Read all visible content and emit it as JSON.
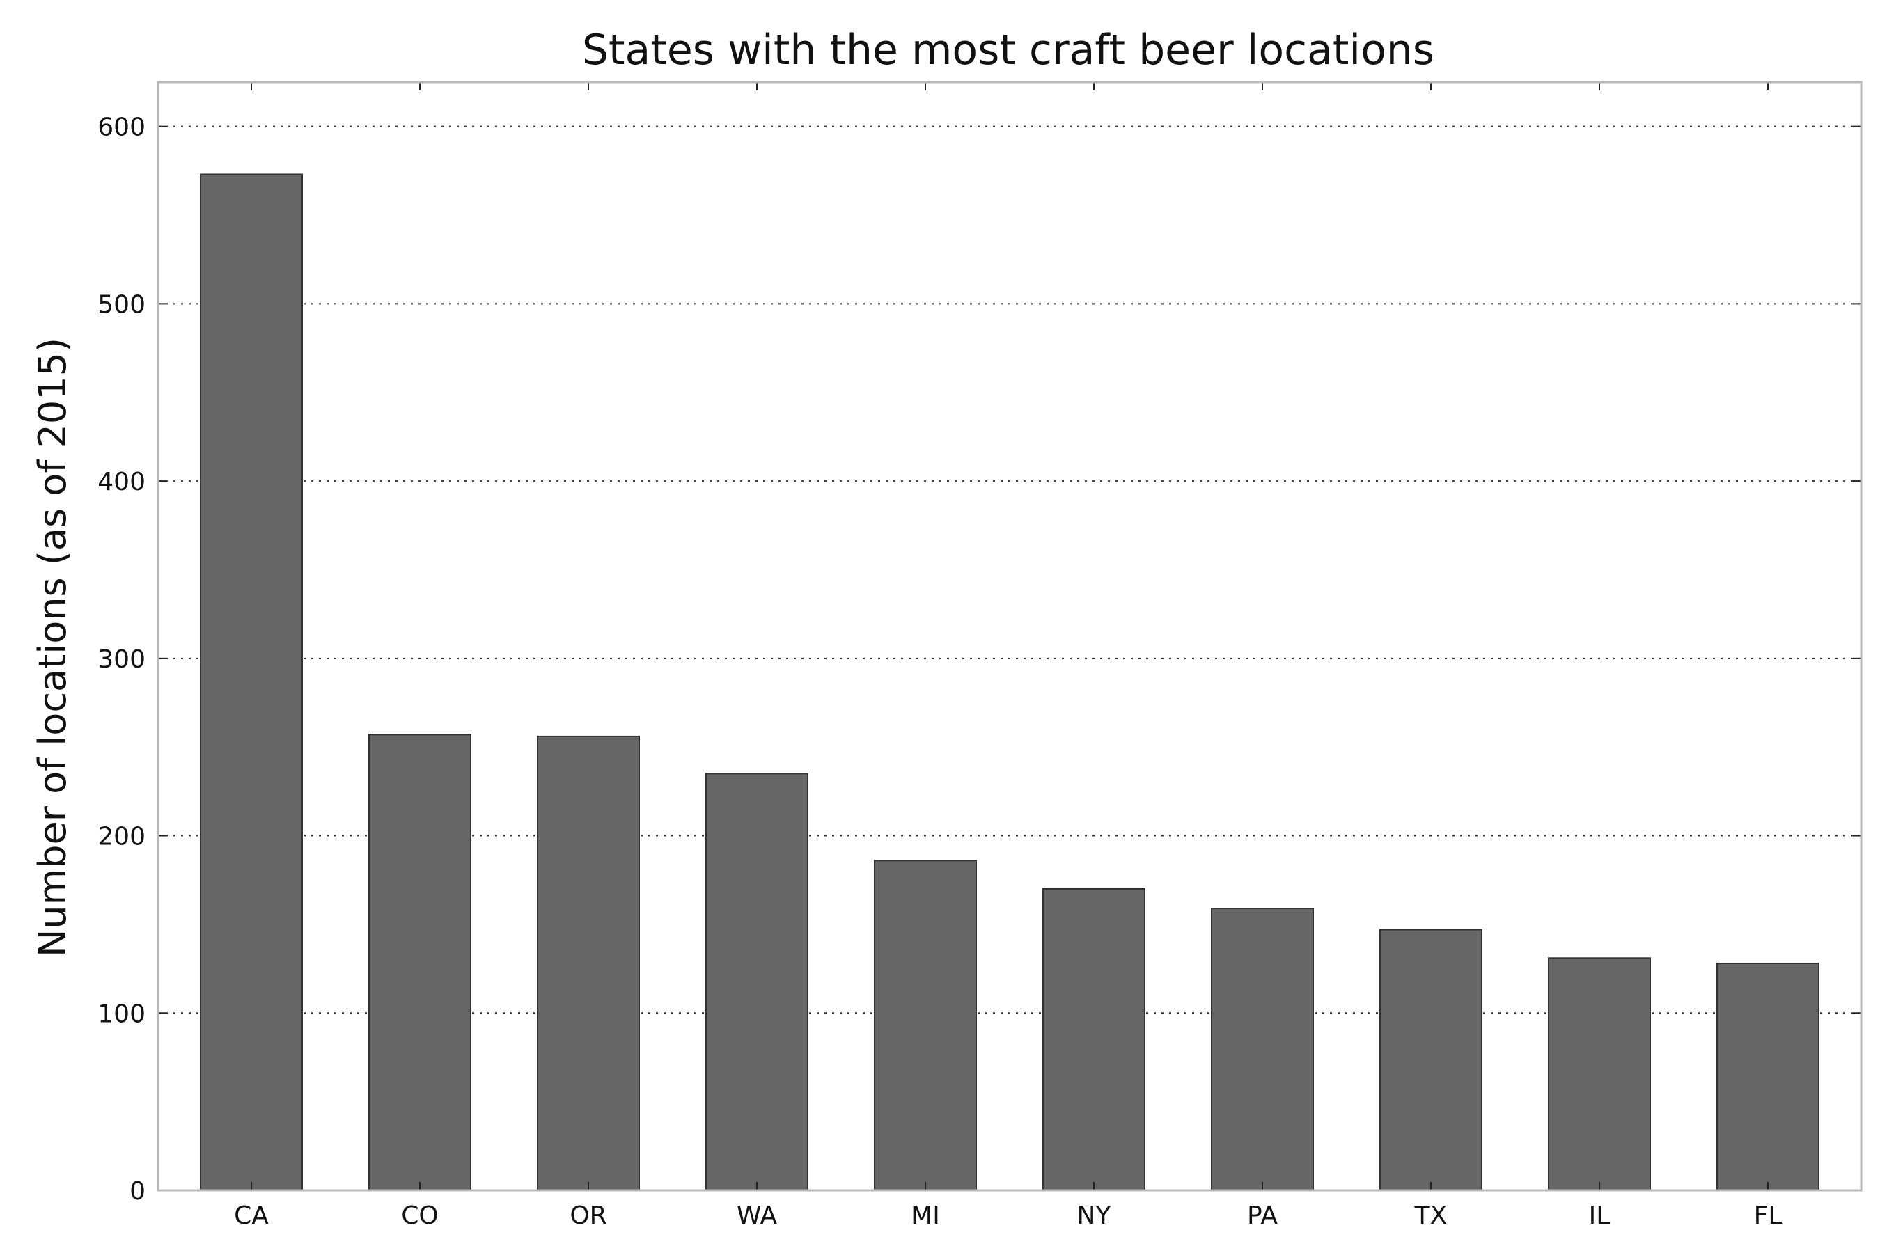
{
  "chart_data": {
    "type": "bar",
    "title": "States with the most craft beer locations",
    "xlabel": "",
    "ylabel": "Number of locations (as of 2015)",
    "categories": [
      "CA",
      "CO",
      "OR",
      "WA",
      "MI",
      "NY",
      "PA",
      "TX",
      "IL",
      "FL"
    ],
    "values": [
      573,
      257,
      256,
      235,
      186,
      170,
      159,
      147,
      131,
      128
    ],
    "ylim": [
      0,
      625
    ],
    "yticks": [
      0,
      100,
      200,
      300,
      400,
      500,
      600
    ],
    "grid": "y-dotted",
    "bar_color": "#666666"
  }
}
